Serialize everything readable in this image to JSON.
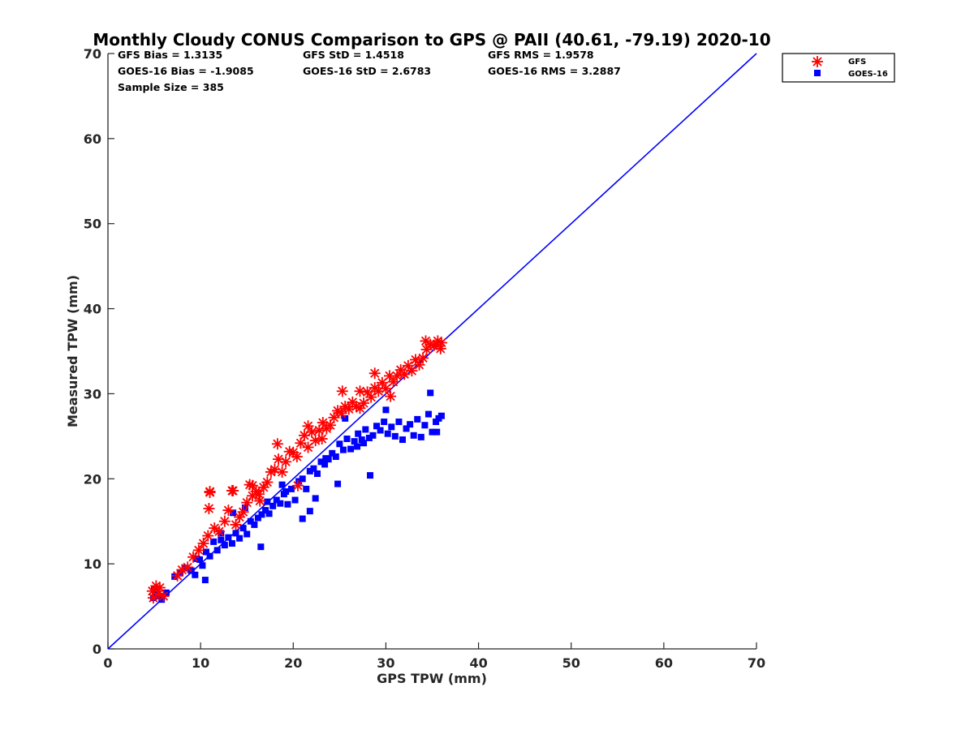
{
  "chart_data": {
    "type": "scatter",
    "title": "Monthly Cloudy CONUS Comparison to GPS @ PAII (40.61, -79.19) 2020-10",
    "xlabel": "GPS TPW (mm)",
    "ylabel": "Measured TPW (mm)",
    "xlim": [
      0,
      70
    ],
    "ylim": [
      0,
      70
    ],
    "xticks": [
      "0",
      "10",
      "20",
      "30",
      "40",
      "50",
      "60",
      "70"
    ],
    "yticks": [
      "0",
      "10",
      "20",
      "30",
      "40",
      "50",
      "60",
      "70"
    ],
    "grid": false,
    "legend_position": "top-right",
    "stats": {
      "gfs_bias": "GFS Bias = 1.3135",
      "gfs_std": "GFS StD = 1.4518",
      "gfs_rms": "GFS RMS = 1.9578",
      "goes_bias": "GOES-16 Bias = -1.9085",
      "goes_std": "GOES-16 StD = 2.6783",
      "goes_rms": "GOES-16 RMS = 3.2887",
      "sample_size": "Sample Size = 385"
    },
    "reference_line": {
      "x": [
        0,
        70
      ],
      "y": [
        0,
        70
      ],
      "color": "#0000ff"
    },
    "series": [
      {
        "name": "GFS",
        "marker": "asterisk",
        "color": "#ff0000",
        "x": [
          4.8,
          5.2,
          5.6,
          6.0,
          4.9,
          5.5,
          7.5,
          8.0,
          8.6,
          9.2,
          9.8,
          10.3,
          10.8,
          11.0,
          10.9,
          11.5,
          12.0,
          12.6,
          13.0,
          13.4,
          13.8,
          14.2,
          14.6,
          15.0,
          15.3,
          15.6,
          16.0,
          16.4,
          16.8,
          17.2,
          17.6,
          18.0,
          18.4,
          18.8,
          19.2,
          19.6,
          20.0,
          20.4,
          20.8,
          21.2,
          21.6,
          22.0,
          22.4,
          22.8,
          23.2,
          23.6,
          24.0,
          24.4,
          24.8,
          25.2,
          25.6,
          26.0,
          26.4,
          26.8,
          27.2,
          27.6,
          28.0,
          28.4,
          28.8,
          29.2,
          29.6,
          30.0,
          30.4,
          30.8,
          31.2,
          31.6,
          32.0,
          32.4,
          32.8,
          33.2,
          33.6,
          34.0,
          34.4,
          34.8,
          35.2,
          35.6,
          35.9,
          36.0,
          35.5,
          34.3,
          30.5,
          28.8,
          25.3,
          18.3,
          20.5,
          21.6,
          11.0,
          13.5,
          15.6,
          16.3,
          23.1,
          27.2
        ],
        "y": [
          6.8,
          7.4,
          7.2,
          6.2,
          6.0,
          6.5,
          8.6,
          9.3,
          9.6,
          10.8,
          11.6,
          12.4,
          13.3,
          18.4,
          16.5,
          14.2,
          13.8,
          15.0,
          16.3,
          18.6,
          14.6,
          15.5,
          16.1,
          17.2,
          19.3,
          18.0,
          18.5,
          17.4,
          19.0,
          19.6,
          20.8,
          21.1,
          22.3,
          20.8,
          22.0,
          23.2,
          23.1,
          22.6,
          24.2,
          25.1,
          23.7,
          25.5,
          24.5,
          25.7,
          26.6,
          25.9,
          26.3,
          27.2,
          28.0,
          27.7,
          28.5,
          28.2,
          29.0,
          28.5,
          28.3,
          28.9,
          30.2,
          29.6,
          30.7,
          30.3,
          31.3,
          30.6,
          32.1,
          31.4,
          32.1,
          32.8,
          32.3,
          33.3,
          32.7,
          34.0,
          33.4,
          34.2,
          35.2,
          35.8,
          35.7,
          36.2,
          35.3,
          36.0,
          35.8,
          36.2,
          29.7,
          32.4,
          30.3,
          24.1,
          19.2,
          26.2,
          18.5,
          18.6,
          19.2,
          18.2,
          24.7,
          30.3
        ]
      },
      {
        "name": "GOES-16",
        "marker": "square",
        "color": "#0000ff",
        "x": [
          4.9,
          5.2,
          5.5,
          5.8,
          5.0,
          6.3,
          7.2,
          7.8,
          8.4,
          9.0,
          9.4,
          9.9,
          10.2,
          10.6,
          11.0,
          11.4,
          11.8,
          12.2,
          12.6,
          13.0,
          13.4,
          13.8,
          14.2,
          14.6,
          15.0,
          15.4,
          15.8,
          16.2,
          16.6,
          17.0,
          17.4,
          17.8,
          18.2,
          18.6,
          19.0,
          19.4,
          19.8,
          20.2,
          20.6,
          21.0,
          21.4,
          21.8,
          22.2,
          22.6,
          23.0,
          23.4,
          23.8,
          24.2,
          24.6,
          25.0,
          25.4,
          25.8,
          26.2,
          26.6,
          27.0,
          27.4,
          27.8,
          28.2,
          28.6,
          29.0,
          29.4,
          29.8,
          30.2,
          30.6,
          31.0,
          31.4,
          31.8,
          32.2,
          32.6,
          33.0,
          33.4,
          33.8,
          34.2,
          34.6,
          35.0,
          35.4,
          35.7,
          36.0,
          35.5,
          34.8,
          30.0,
          27.6,
          24.8,
          21.0,
          19.2,
          16.5,
          14.8,
          10.5,
          12.2,
          9.6,
          13.5,
          21.8,
          17.2,
          25.6,
          28.3,
          22.4,
          18.8,
          23.5,
          26.9
        ],
        "y": [
          6.0,
          6.5,
          6.2,
          5.8,
          7.0,
          6.6,
          8.5,
          8.9,
          9.5,
          9.2,
          8.7,
          10.5,
          9.8,
          11.4,
          10.9,
          12.6,
          11.6,
          12.8,
          12.2,
          13.1,
          12.4,
          13.6,
          13.0,
          14.2,
          13.5,
          15.0,
          14.6,
          15.4,
          15.8,
          16.3,
          15.9,
          16.8,
          17.5,
          17.1,
          18.2,
          17.0,
          18.8,
          17.5,
          19.7,
          20.0,
          18.8,
          20.9,
          21.2,
          20.6,
          22.0,
          21.7,
          22.3,
          23.0,
          22.6,
          24.1,
          23.4,
          24.7,
          23.5,
          24.4,
          25.3,
          24.6,
          25.8,
          24.8,
          25.1,
          26.2,
          25.7,
          26.7,
          25.3,
          26.1,
          25.0,
          26.7,
          24.6,
          25.9,
          26.4,
          25.1,
          27.0,
          24.9,
          26.3,
          27.6,
          25.5,
          26.7,
          27.1,
          27.4,
          25.5,
          30.1,
          28.1,
          24.2,
          19.4,
          15.3,
          18.5,
          12.0,
          16.6,
          8.1,
          13.6,
          10.6,
          16.0,
          16.2,
          17.3,
          27.1,
          20.4,
          17.7,
          19.3,
          22.4,
          23.8
        ]
      }
    ]
  }
}
